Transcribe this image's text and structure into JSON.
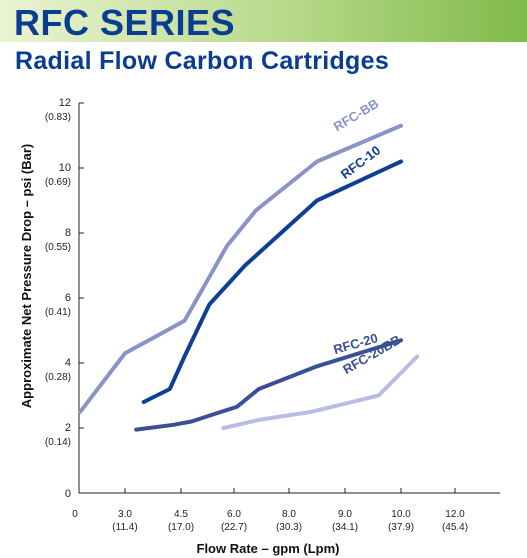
{
  "header": {
    "title": "RFC SERIES",
    "subtitle": "Radial Flow Carbon Cartridges"
  },
  "chart_data": {
    "type": "line",
    "xlabel": "Flow Rate – gpm (Lpm)",
    "ylabel": "Approximate Net Pressure Drop – psi (Bar)",
    "xlim": [
      1.5,
      12.3
    ],
    "ylim": [
      0,
      12
    ],
    "x_ticks": [
      {
        "value": 0,
        "label": "0",
        "sub": ""
      },
      {
        "value": 3.0,
        "label": "3.0",
        "sub": "(11.4)"
      },
      {
        "value": 4.5,
        "label": "4.5",
        "sub": "(17.0)"
      },
      {
        "value": 6.0,
        "label": "6.0",
        "sub": "(22.7)"
      },
      {
        "value": 8.0,
        "label": "8.0",
        "sub": "(30.3)"
      },
      {
        "value": 9.0,
        "label": "9.0",
        "sub": "(34.1)"
      },
      {
        "value": 10.0,
        "label": "10.0",
        "sub": "(37.9)"
      },
      {
        "value": 12.0,
        "label": "12.0",
        "sub": "(45.4)"
      }
    ],
    "y_ticks": [
      {
        "value": 0,
        "label": "0",
        "sub": ""
      },
      {
        "value": 2,
        "label": "2",
        "sub": "(0.14)"
      },
      {
        "value": 4,
        "label": "4",
        "sub": "(0.28)"
      },
      {
        "value": 6,
        "label": "6",
        "sub": "(0.41)"
      },
      {
        "value": 8,
        "label": "8",
        "sub": "(0.55)"
      },
      {
        "value": 10,
        "label": "10",
        "sub": "(0.69)"
      },
      {
        "value": 12,
        "label": "12",
        "sub": "(0.83)"
      }
    ],
    "grid": false,
    "series": [
      {
        "name": "RFC-BB",
        "color": "#8a93c8",
        "x": [
          1.8,
          3.0,
          4.6,
          5.8,
          6.8,
          8.5,
          10.0
        ],
        "y": [
          2.5,
          4.3,
          5.3,
          7.6,
          8.7,
          10.2,
          11.3
        ]
      },
      {
        "name": "RFC-10",
        "color": "#0c3f96",
        "x": [
          3.5,
          4.2,
          4.6,
          5.3,
          6.4,
          8.5,
          10.0
        ],
        "y": [
          2.8,
          3.2,
          4.2,
          5.8,
          7.0,
          9.0,
          10.2
        ]
      },
      {
        "name": "RFC-20",
        "color": "#3a4f96",
        "x": [
          3.3,
          4.3,
          4.8,
          5.5,
          6.1,
          6.9,
          8.5,
          10.0
        ],
        "y": [
          1.95,
          2.1,
          2.2,
          2.45,
          2.65,
          3.2,
          3.9,
          4.7
        ]
      },
      {
        "name": "RFC-20BB",
        "color": "#b9bde3",
        "x": [
          5.7,
          6.9,
          8.4,
          9.6,
          10.6
        ],
        "y": [
          2.0,
          2.25,
          2.5,
          3.0,
          4.2
        ]
      }
    ]
  }
}
